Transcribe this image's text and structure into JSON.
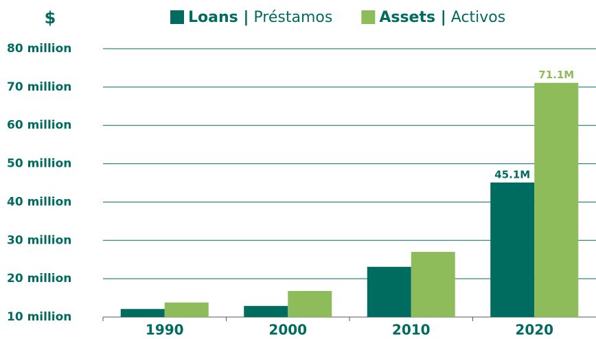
{
  "chart_data": {
    "type": "bar",
    "y_label": "$",
    "categories": [
      "1990",
      "2000",
      "2010",
      "2020"
    ],
    "series": [
      {
        "name": "Loans | Préstamos",
        "color": "#006b5f",
        "values": [
          12.1,
          12.9,
          23.1,
          45.1
        ],
        "value_labels": [
          null,
          null,
          null,
          "45.1M"
        ]
      },
      {
        "name": "Assets | Activos",
        "color": "#8fbc5a",
        "values": [
          13.8,
          16.8,
          27.0,
          71.1
        ],
        "value_labels": [
          null,
          null,
          null,
          "71.1M"
        ]
      }
    ],
    "ylim": [
      10,
      80
    ],
    "yticks": [
      {
        "value": 10,
        "label": "10 million"
      },
      {
        "value": 20,
        "label": "20 million"
      },
      {
        "value": 30,
        "label": "30 million"
      },
      {
        "value": 40,
        "label": "40 million"
      },
      {
        "value": 50,
        "label": "50 million"
      },
      {
        "value": 60,
        "label": "60 million"
      },
      {
        "value": 70,
        "label": "70 million"
      },
      {
        "value": 80,
        "label": "80 million"
      }
    ],
    "grid": true,
    "legend": "top"
  }
}
